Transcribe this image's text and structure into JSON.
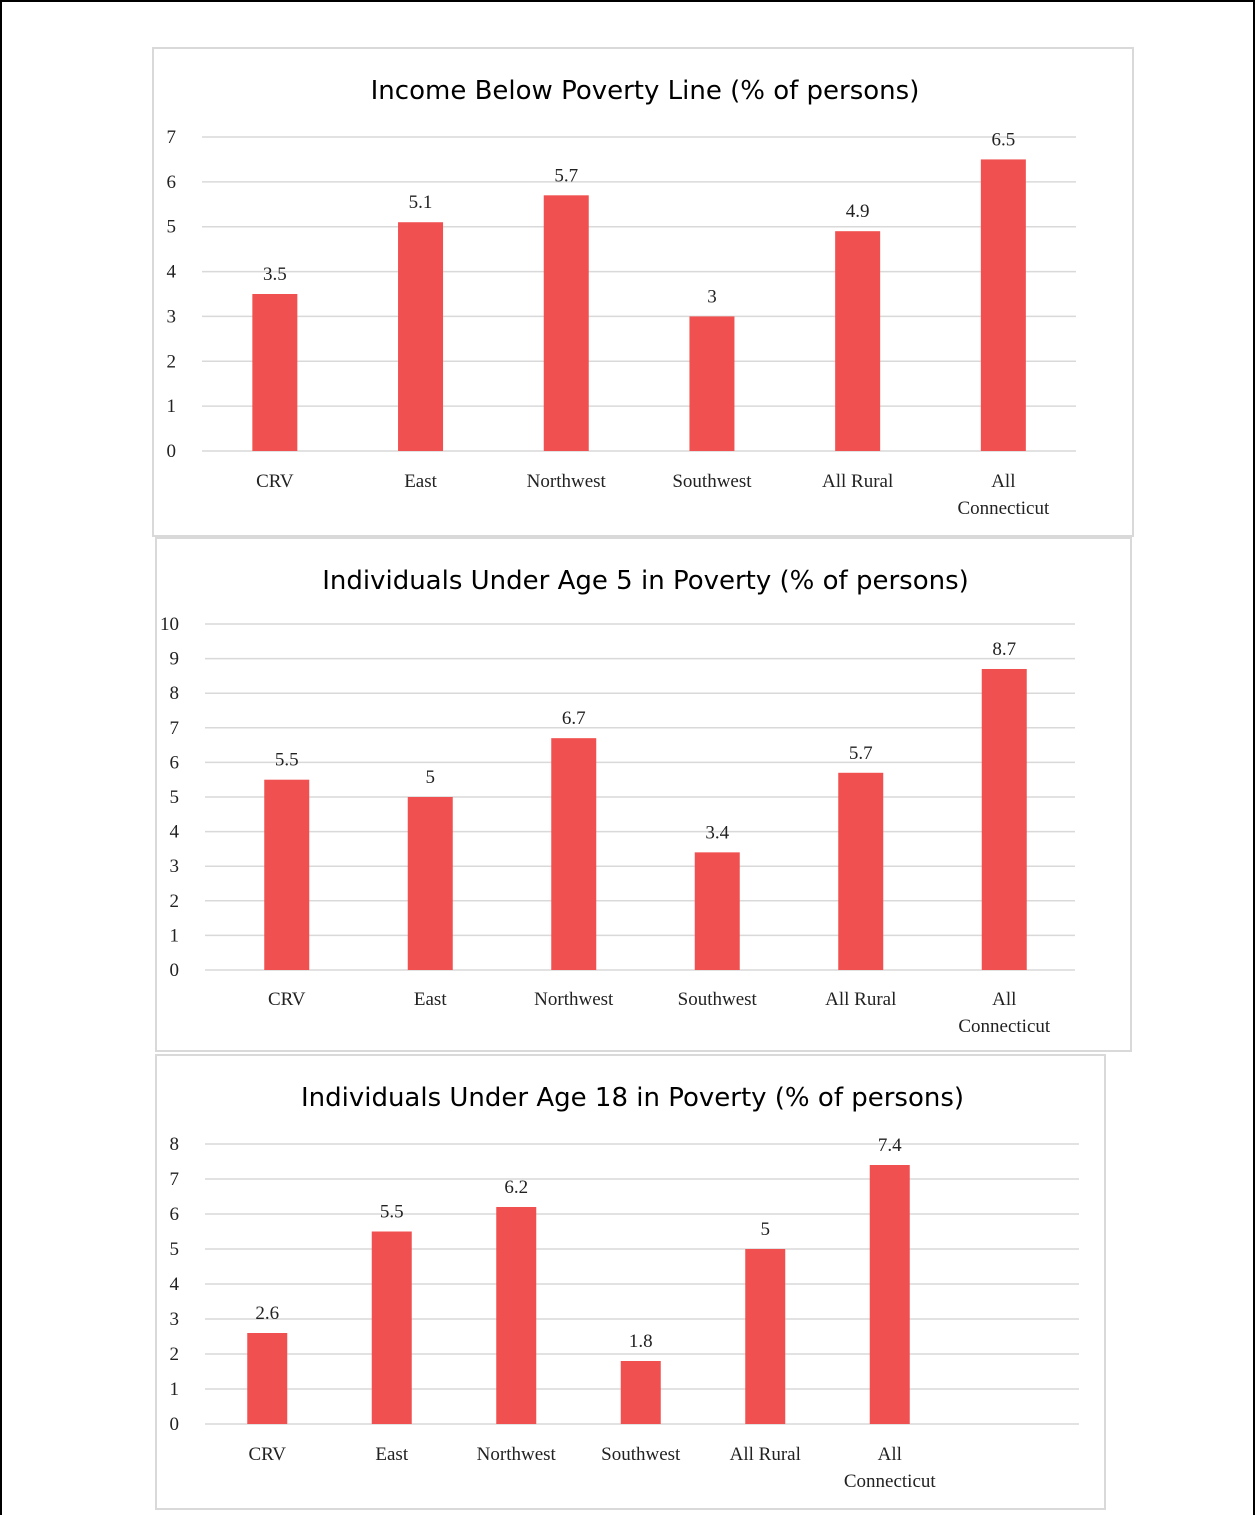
{
  "colors": {
    "bar": "#f0504f",
    "grid": "#d9d9d9"
  },
  "chart_data": [
    {
      "type": "bar",
      "title": "Income Below Poverty Line (% of persons)",
      "xlabel": "",
      "ylabel": "",
      "categories": [
        "CRV",
        "East",
        "Northwest",
        "Southwest",
        "All Rural",
        "All Connecticut"
      ],
      "values": [
        3.5,
        5.1,
        5.7,
        3,
        4.9,
        6.5
      ],
      "value_labels": [
        "3.5",
        "5.1",
        "5.7",
        "3",
        "4.9",
        "6.5"
      ],
      "yticks": [
        "0",
        "1",
        "2",
        "3",
        "4",
        "5",
        "6",
        "7"
      ],
      "ylim": [
        0,
        7
      ],
      "grid": true,
      "legend": "none"
    },
    {
      "type": "bar",
      "title": "Individuals Under Age 5 in Poverty (% of persons)",
      "xlabel": "",
      "ylabel": "",
      "categories": [
        "CRV",
        "East",
        "Northwest",
        "Southwest",
        "All Rural",
        "All Connecticut"
      ],
      "values": [
        5.5,
        5,
        6.7,
        3.4,
        5.7,
        8.7
      ],
      "value_labels": [
        "5.5",
        "5",
        "6.7",
        "3.4",
        "5.7",
        "8.7"
      ],
      "yticks": [
        "0",
        "1",
        "2",
        "3",
        "4",
        "5",
        "6",
        "7",
        "8",
        "9",
        "10"
      ],
      "ylim": [
        0,
        10
      ],
      "grid": true,
      "legend": "none"
    },
    {
      "type": "bar",
      "title": "Individuals Under Age 18 in Poverty (% of persons)",
      "xlabel": "",
      "ylabel": "",
      "categories": [
        "CRV",
        "East",
        "Northwest",
        "Southwest",
        "All Rural",
        "All Connecticut"
      ],
      "values": [
        2.6,
        5.5,
        6.2,
        1.8,
        5,
        7.4
      ],
      "value_labels": [
        "2.6",
        "5.5",
        "6.2",
        "1.8",
        "5",
        "7.4"
      ],
      "yticks": [
        "0",
        "1",
        "2",
        "3",
        "4",
        "5",
        "6",
        "7",
        "8"
      ],
      "ylim": [
        0,
        8
      ],
      "grid": true,
      "legend": "none"
    }
  ]
}
